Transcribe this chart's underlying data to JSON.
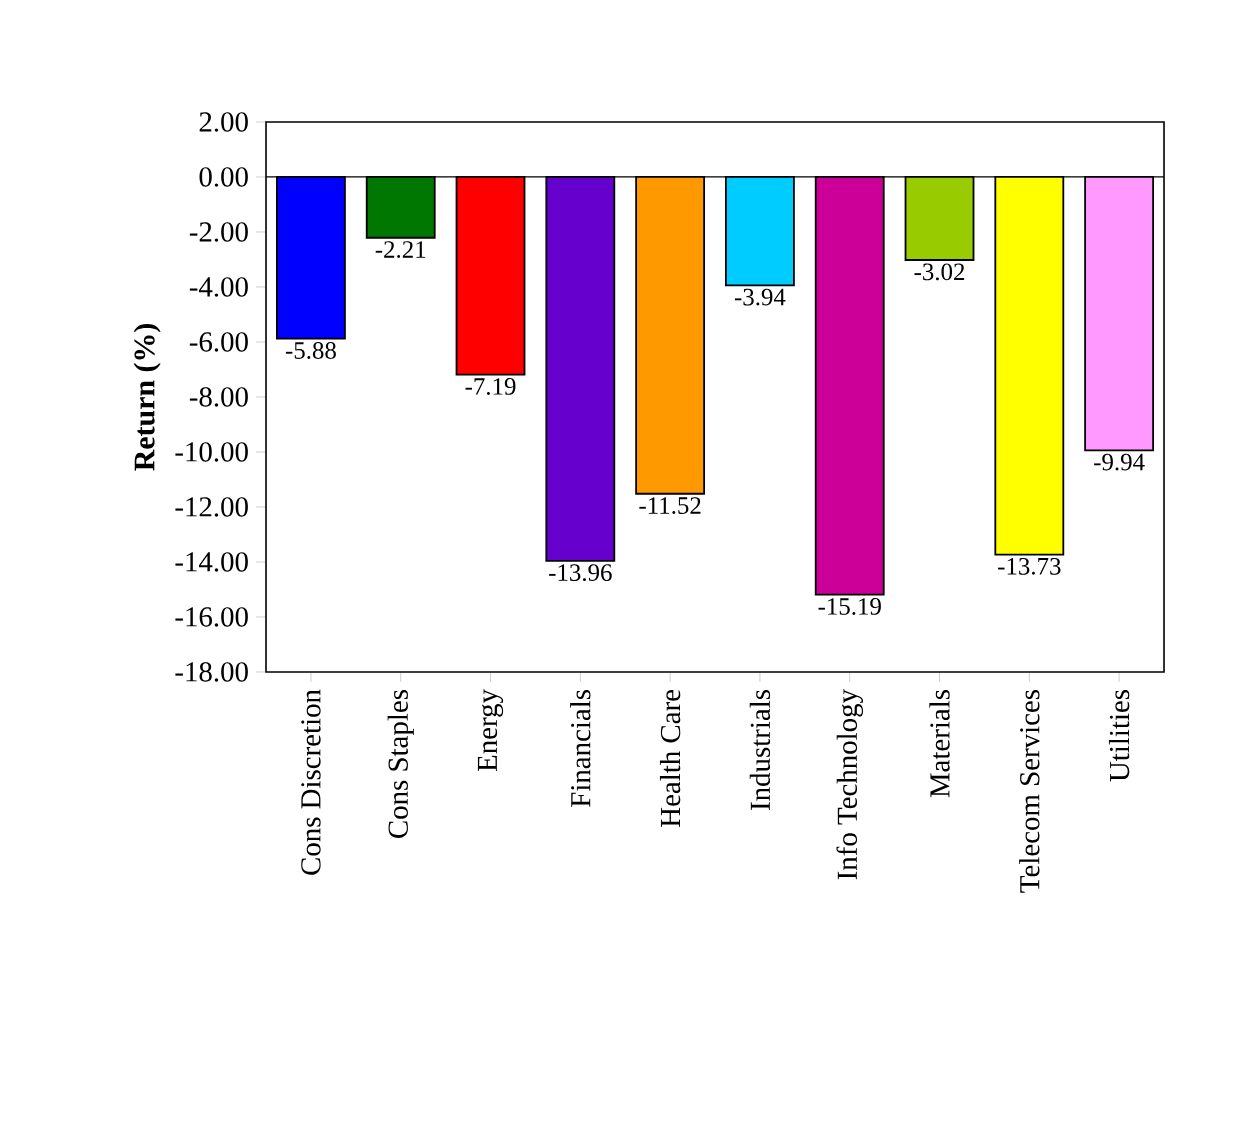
{
  "chart_data": {
    "type": "bar",
    "ylabel": "Return (%)",
    "categories": [
      "Cons Discretion",
      "Cons Staples",
      "Energy",
      "Financials",
      "Health Care",
      "Industrials",
      "Info Technology",
      "Materials",
      "Telecom Services",
      "Utilities"
    ],
    "values": [
      -5.88,
      -2.21,
      -7.19,
      -13.96,
      -11.52,
      -3.94,
      -15.19,
      -3.02,
      -13.73,
      -9.94
    ],
    "colors": [
      "#0000ff",
      "#007700",
      "#ff0000",
      "#6600cc",
      "#ff9900",
      "#00ccff",
      "#cc0099",
      "#99cc00",
      "#ffff00",
      "#ff99ff"
    ],
    "ylim": [
      -18,
      2
    ],
    "yticks": [
      {
        "value": 2,
        "label": "2.00"
      },
      {
        "value": 0,
        "label": "0.00"
      },
      {
        "value": -2,
        "label": "-2.00"
      },
      {
        "value": -4,
        "label": "-4.00"
      },
      {
        "value": -6,
        "label": "-6.00"
      },
      {
        "value": -8,
        "label": "-8.00"
      },
      {
        "value": -10,
        "label": "-10.00"
      },
      {
        "value": -12,
        "label": "-12.00"
      },
      {
        "value": -14,
        "label": "-14.00"
      },
      {
        "value": -16,
        "label": "-16.00"
      },
      {
        "value": -18,
        "label": "-18.00"
      }
    ],
    "data_labels": true
  }
}
